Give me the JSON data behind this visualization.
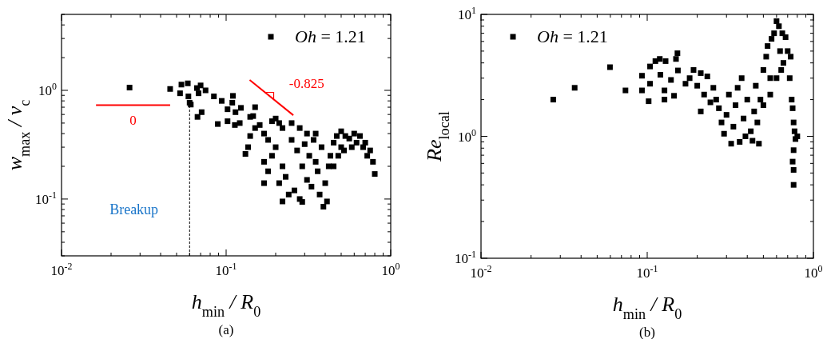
{
  "chart_data": [
    {
      "type": "scatter",
      "xlabel": "h$_{min}$ / R$_{0}$",
      "ylabel": "w$_{max}$ / v$_{c}$",
      "log": "xy",
      "legend": "top right",
      "xlim": [
        0.01,
        1
      ],
      "ylim": [
        0.03,
        5
      ],
      "xticks": [
        {
          "value": 0.01,
          "label": "10$^{-2}$"
        },
        {
          "value": 0.02,
          "label": null
        },
        {
          "value": 0.03,
          "label": null
        },
        {
          "value": 0.04,
          "label": null
        },
        {
          "value": 0.05,
          "label": null
        },
        {
          "value": 0.06,
          "label": null
        },
        {
          "value": 0.07,
          "label": null
        },
        {
          "value": 0.08,
          "label": null
        },
        {
          "value": 0.09,
          "label": null
        },
        {
          "value": 0.1,
          "label": "10$^{-1}$"
        },
        {
          "value": 0.2,
          "label": null
        },
        {
          "value": 0.3,
          "label": null
        },
        {
          "value": 0.4,
          "label": null
        },
        {
          "value": 0.5,
          "label": null
        },
        {
          "value": 0.6,
          "label": null
        },
        {
          "value": 0.7,
          "label": null
        },
        {
          "value": 0.8,
          "label": null
        },
        {
          "value": 0.9,
          "label": null
        },
        {
          "value": 1,
          "label": "10$^{0}$"
        }
      ],
      "yticks": [
        {
          "value": 0.03,
          "label": null
        },
        {
          "value": 0.04,
          "label": null
        },
        {
          "value": 0.05,
          "label": null
        },
        {
          "value": 0.06,
          "label": null
        },
        {
          "value": 0.07,
          "label": null
        },
        {
          "value": 0.08,
          "label": null
        },
        {
          "value": 0.09,
          "label": null
        },
        {
          "value": 0.1,
          "label": "10$^{-1}$"
        },
        {
          "value": 0.2,
          "label": null
        },
        {
          "value": 0.3,
          "label": null
        },
        {
          "value": 0.4,
          "label": null
        },
        {
          "value": 0.5,
          "label": null
        },
        {
          "value": 0.6,
          "label": null
        },
        {
          "value": 0.7,
          "label": null
        },
        {
          "value": 0.8,
          "label": null
        },
        {
          "value": 0.9,
          "label": null
        },
        {
          "value": 1,
          "label": "10$^{0}$"
        },
        {
          "value": 2,
          "label": null
        },
        {
          "value": 3,
          "label": null
        },
        {
          "value": 4,
          "label": null
        },
        {
          "value": 5,
          "label": null
        }
      ],
      "annotations": [
        "Breakup",
        "(a)"
      ],
      "series": [
        {
          "name": "Oh = 1.21",
          "color": "#000000",
          "marker": "square",
          "x": [
            0.0259,
            0.0457,
            0.0525,
            0.0535,
            0.0585,
            0.059,
            0.06,
            0.061,
            0.0665,
            0.068,
            0.07,
            0.067,
            0.071,
            0.075,
            0.0843,
            0.089,
            0.094,
            0.102,
            0.102,
            0.11,
            0.109,
            0.114,
            0.123,
            0.113,
            0.121,
            0.131,
            0.136,
            0.14,
            0.15,
            0.146,
            0.16,
            0.17,
            0.18,
            0.19,
            0.2,
            0.21,
            0.22,
            0.17,
            0.18,
            0.19,
            0.2,
            0.21,
            0.22,
            0.23,
            0.24,
            0.25,
            0.26,
            0.27,
            0.28,
            0.29,
            0.3,
            0.31,
            0.32,
            0.33,
            0.34,
            0.35,
            0.36,
            0.37,
            0.38,
            0.39,
            0.4,
            0.41,
            0.42,
            0.43,
            0.45,
            0.47,
            0.5,
            0.53,
            0.56,
            0.6,
            0.65,
            0.7,
            0.75,
            0.78,
            0.8,
            0.22,
            0.17,
            0.15,
            0.14,
            0.48,
            0.52,
            0.58,
            0.62,
            0.68,
            0.72,
            0.25,
            0.28,
            0.31,
            0.35,
            0.29,
            0.45,
            0.5
          ],
          "values": [
            1.06,
            1.03,
            0.94,
            1.13,
            1.16,
            0.88,
            0.77,
            0.74,
            1.05,
            0.94,
            1.11,
            0.57,
            0.63,
            1.0,
            0.88,
            0.49,
            0.8,
            0.67,
            0.52,
            0.89,
            0.77,
            0.63,
            0.69,
            0.48,
            0.5,
            0.26,
            0.3,
            0.57,
            0.7,
            0.58,
            0.48,
            0.4,
            0.35,
            0.52,
            0.55,
            0.5,
            0.45,
            0.22,
            0.18,
            0.25,
            0.3,
            0.14,
            0.2,
            0.16,
            0.11,
            0.35,
            0.12,
            0.28,
            0.1,
            0.2,
            0.32,
            0.15,
            0.25,
            0.13,
            0.35,
            0.22,
            0.18,
            0.11,
            0.3,
            0.085,
            0.14,
            0.095,
            0.2,
            0.25,
            0.33,
            0.38,
            0.42,
            0.38,
            0.36,
            0.4,
            0.38,
            0.33,
            0.28,
            0.22,
            0.17,
            0.095,
            0.14,
            0.45,
            0.38,
            0.25,
            0.28,
            0.3,
            0.33,
            0.3,
            0.25,
            0.5,
            0.45,
            0.4,
            0.4,
            0.094,
            0.2,
            0.3
          ]
        },
        {
          "type": "line",
          "name": "0",
          "color": "#ff0000",
          "x": [
            0.0162,
            0.0457
          ],
          "values": [
            0.73,
            0.73
          ]
        },
        {
          "type": "line",
          "name": "-0.825",
          "color": "#ff0000",
          "x": [
            0.139,
            0.256
          ],
          "values": [
            1.245,
            0.59
          ]
        },
        {
          "type": "line",
          "color": "#000000",
          "line_style": "dashed",
          "x": [
            0.06,
            0.06
          ],
          "values": [
            0.03,
            0.75
          ]
        }
      ]
    },
    {
      "type": "scatter",
      "xlabel": "h$_{min}$ / R$_{0}$",
      "ylabel": "Re$_{local}$",
      "log": "xy",
      "legend": "top left",
      "xlim": [
        0.01,
        1
      ],
      "ylim": [
        0.1,
        10
      ],
      "xticks": [
        {
          "value": 0.01,
          "label": "10$^{-2}$"
        },
        {
          "value": 0.02,
          "label": null
        },
        {
          "value": 0.03,
          "label": null
        },
        {
          "value": 0.04,
          "label": null
        },
        {
          "value": 0.05,
          "label": null
        },
        {
          "value": 0.06,
          "label": null
        },
        {
          "value": 0.07,
          "label": null
        },
        {
          "value": 0.08,
          "label": null
        },
        {
          "value": 0.09,
          "label": null
        },
        {
          "value": 0.1,
          "label": "10$^{-1}$"
        },
        {
          "value": 0.2,
          "label": null
        },
        {
          "value": 0.3,
          "label": null
        },
        {
          "value": 0.4,
          "label": null
        },
        {
          "value": 0.5,
          "label": null
        },
        {
          "value": 0.6,
          "label": null
        },
        {
          "value": 0.7,
          "label": null
        },
        {
          "value": 0.8,
          "label": null
        },
        {
          "value": 0.9,
          "label": null
        },
        {
          "value": 1,
          "label": "10$^{0}$"
        }
      ],
      "yticks": [
        {
          "value": 0.1,
          "label": "10$^{-1}$"
        },
        {
          "value": 0.2,
          "label": null
        },
        {
          "value": 0.3,
          "label": null
        },
        {
          "value": 0.4,
          "label": null
        },
        {
          "value": 0.5,
          "label": null
        },
        {
          "value": 0.6,
          "label": null
        },
        {
          "value": 0.7,
          "label": null
        },
        {
          "value": 0.8,
          "label": null
        },
        {
          "value": 0.9,
          "label": null
        },
        {
          "value": 1,
          "label": "10$^{0}$"
        },
        {
          "value": 2,
          "label": null
        },
        {
          "value": 3,
          "label": null
        },
        {
          "value": 4,
          "label": null
        },
        {
          "value": 5,
          "label": null
        },
        {
          "value": 6,
          "label": null
        },
        {
          "value": 7,
          "label": null
        },
        {
          "value": 8,
          "label": null
        },
        {
          "value": 9,
          "label": null
        },
        {
          "value": 10,
          "label": "10$^{1}$"
        }
      ],
      "annotations": [
        "(b)"
      ],
      "series": [
        {
          "name": "Oh = 1.21",
          "color": "#000000",
          "marker": "square",
          "x": [
            0.0272,
            0.0366,
            0.0597,
            0.074,
            0.093,
            0.093,
            0.102,
            0.104,
            0.112,
            0.119,
            0.129,
            0.12,
            0.104,
            0.127,
            0.127,
            0.145,
            0.152,
            0.149,
            0.153,
            0.139,
            0.18,
            0.19,
            0.17,
            0.2,
            0.21,
            0.22,
            0.23,
            0.24,
            0.21,
            0.25,
            0.26,
            0.27,
            0.28,
            0.29,
            0.3,
            0.31,
            0.32,
            0.33,
            0.34,
            0.35,
            0.36,
            0.37,
            0.38,
            0.39,
            0.4,
            0.42,
            0.43,
            0.44,
            0.45,
            0.47,
            0.46,
            0.48,
            0.5,
            0.52,
            0.53,
            0.55,
            0.56,
            0.58,
            0.6,
            0.62,
            0.63,
            0.64,
            0.65,
            0.66,
            0.68,
            0.7,
            0.72,
            0.73,
            0.74,
            0.75,
            0.76,
            0.77,
            0.78,
            0.76,
            0.75,
            0.76,
            0.76,
            0.8,
            0.5,
            0.55,
            0.6
          ],
          "values": [
            2.0,
            2.5,
            3.69,
            2.38,
            3.14,
            2.38,
            1.94,
            3.74,
            4.14,
            4.31,
            4.14,
            3.2,
            2.7,
            2.38,
            2.0,
            2.15,
            4.8,
            4.31,
            3.47,
            2.9,
            3.0,
            3.5,
            2.7,
            2.6,
            3.3,
            2.2,
            3.1,
            1.9,
            1.6,
            2.5,
            2.0,
            1.7,
            1.3,
            1.05,
            1.5,
            2.2,
            0.87,
            1.2,
            1.8,
            2.5,
            0.9,
            3.0,
            1.4,
            1.0,
            2.0,
            1.1,
            0.92,
            1.6,
            2.6,
            0.87,
            1.3,
            2.0,
            3.5,
            4.5,
            5.5,
            3.0,
            6.3,
            7.0,
            8.8,
            8.0,
            5.0,
            3.5,
            7.0,
            4.0,
            6.5,
            5.0,
            3.0,
            4.5,
            2.0,
            1.7,
            1.3,
            1.1,
            0.95,
            0.77,
            0.62,
            0.53,
            0.4,
            1.0,
            1.8,
            2.2,
            3.0
          ]
        }
      ]
    }
  ]
}
